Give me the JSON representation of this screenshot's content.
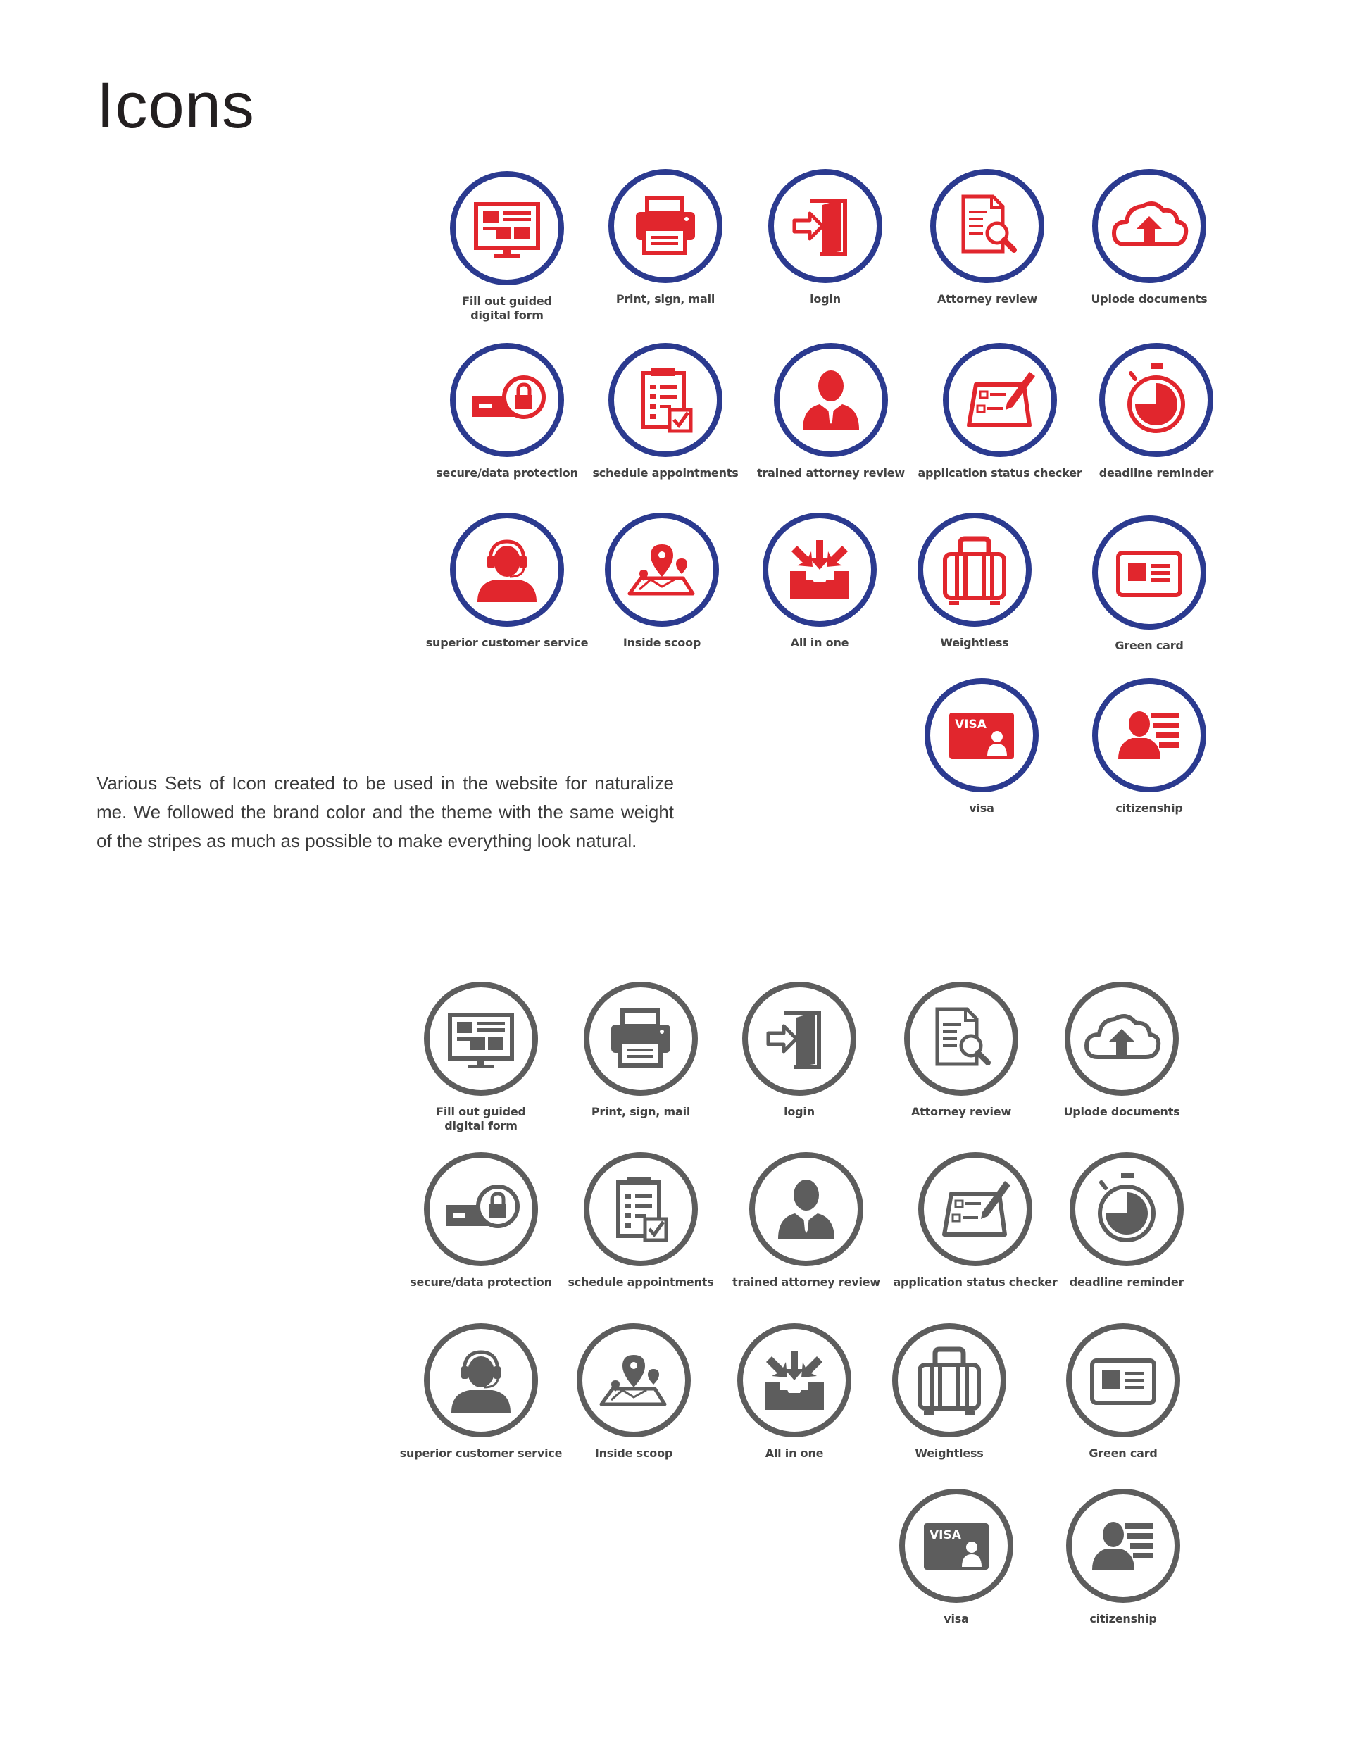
{
  "heading": "Icons",
  "description": "Various Sets of Icon created to be used in the website for naturalize me. We followed the brand color and the theme with the same weight of the stripes as much as possible to make everything look natural.",
  "colors": {
    "ring_color_set": "#2b3a8f",
    "glyph_color_set": "#e1262d",
    "gray_set": "#5d5d5d"
  },
  "icon_sets": [
    {
      "variant": "color",
      "icons": [
        {
          "icon": "monitor-form-icon",
          "label": "Fill out guided\ndigital form"
        },
        {
          "icon": "printer-icon",
          "label": "Print, sign, mail"
        },
        {
          "icon": "login-door-icon",
          "label": "login"
        },
        {
          "icon": "document-search-icon",
          "label": "Attorney review"
        },
        {
          "icon": "cloud-upload-icon",
          "label": "Uplode documents"
        },
        {
          "icon": "lock-key-icon",
          "label": "secure/data protection"
        },
        {
          "icon": "checklist-icon",
          "label": "schedule appointments"
        },
        {
          "icon": "attorney-person-icon",
          "label": "trained attorney review"
        },
        {
          "icon": "application-check-icon",
          "label": "application status checker"
        },
        {
          "icon": "stopwatch-icon",
          "label": "deadline reminder"
        },
        {
          "icon": "headset-agent-icon",
          "label": "superior customer service"
        },
        {
          "icon": "map-pins-icon",
          "label": "Inside scoop"
        },
        {
          "icon": "inbox-arrows-icon",
          "label": "All in one"
        },
        {
          "icon": "suitcase-icon",
          "label": "Weightless"
        },
        {
          "icon": "id-card-icon",
          "label": "Green card"
        },
        {
          "icon": "visa-card-icon",
          "label": "visa",
          "text": "VISA"
        },
        {
          "icon": "citizen-profile-icon",
          "label": "citizenship"
        }
      ]
    },
    {
      "variant": "gray",
      "icons": [
        {
          "icon": "monitor-form-icon",
          "label": "Fill out guided\ndigital form"
        },
        {
          "icon": "printer-icon",
          "label": "Print, sign, mail"
        },
        {
          "icon": "login-door-icon",
          "label": "login"
        },
        {
          "icon": "document-search-icon",
          "label": "Attorney review"
        },
        {
          "icon": "cloud-upload-icon",
          "label": "Uplode documents"
        },
        {
          "icon": "lock-key-icon",
          "label": "secure/data protection"
        },
        {
          "icon": "checklist-icon",
          "label": "schedule appointments"
        },
        {
          "icon": "attorney-person-icon",
          "label": "trained attorney review"
        },
        {
          "icon": "application-check-icon",
          "label": "application status checker"
        },
        {
          "icon": "stopwatch-icon",
          "label": "deadline reminder"
        },
        {
          "icon": "headset-agent-icon",
          "label": "superior customer service"
        },
        {
          "icon": "map-pins-icon",
          "label": "Inside scoop"
        },
        {
          "icon": "inbox-arrows-icon",
          "label": "All in one"
        },
        {
          "icon": "suitcase-icon",
          "label": "Weightless"
        },
        {
          "icon": "id-card-icon",
          "label": "Green card"
        },
        {
          "icon": "visa-card-icon",
          "label": "visa",
          "text": "VISA"
        },
        {
          "icon": "citizen-profile-icon",
          "label": "citizenship"
        }
      ]
    }
  ]
}
